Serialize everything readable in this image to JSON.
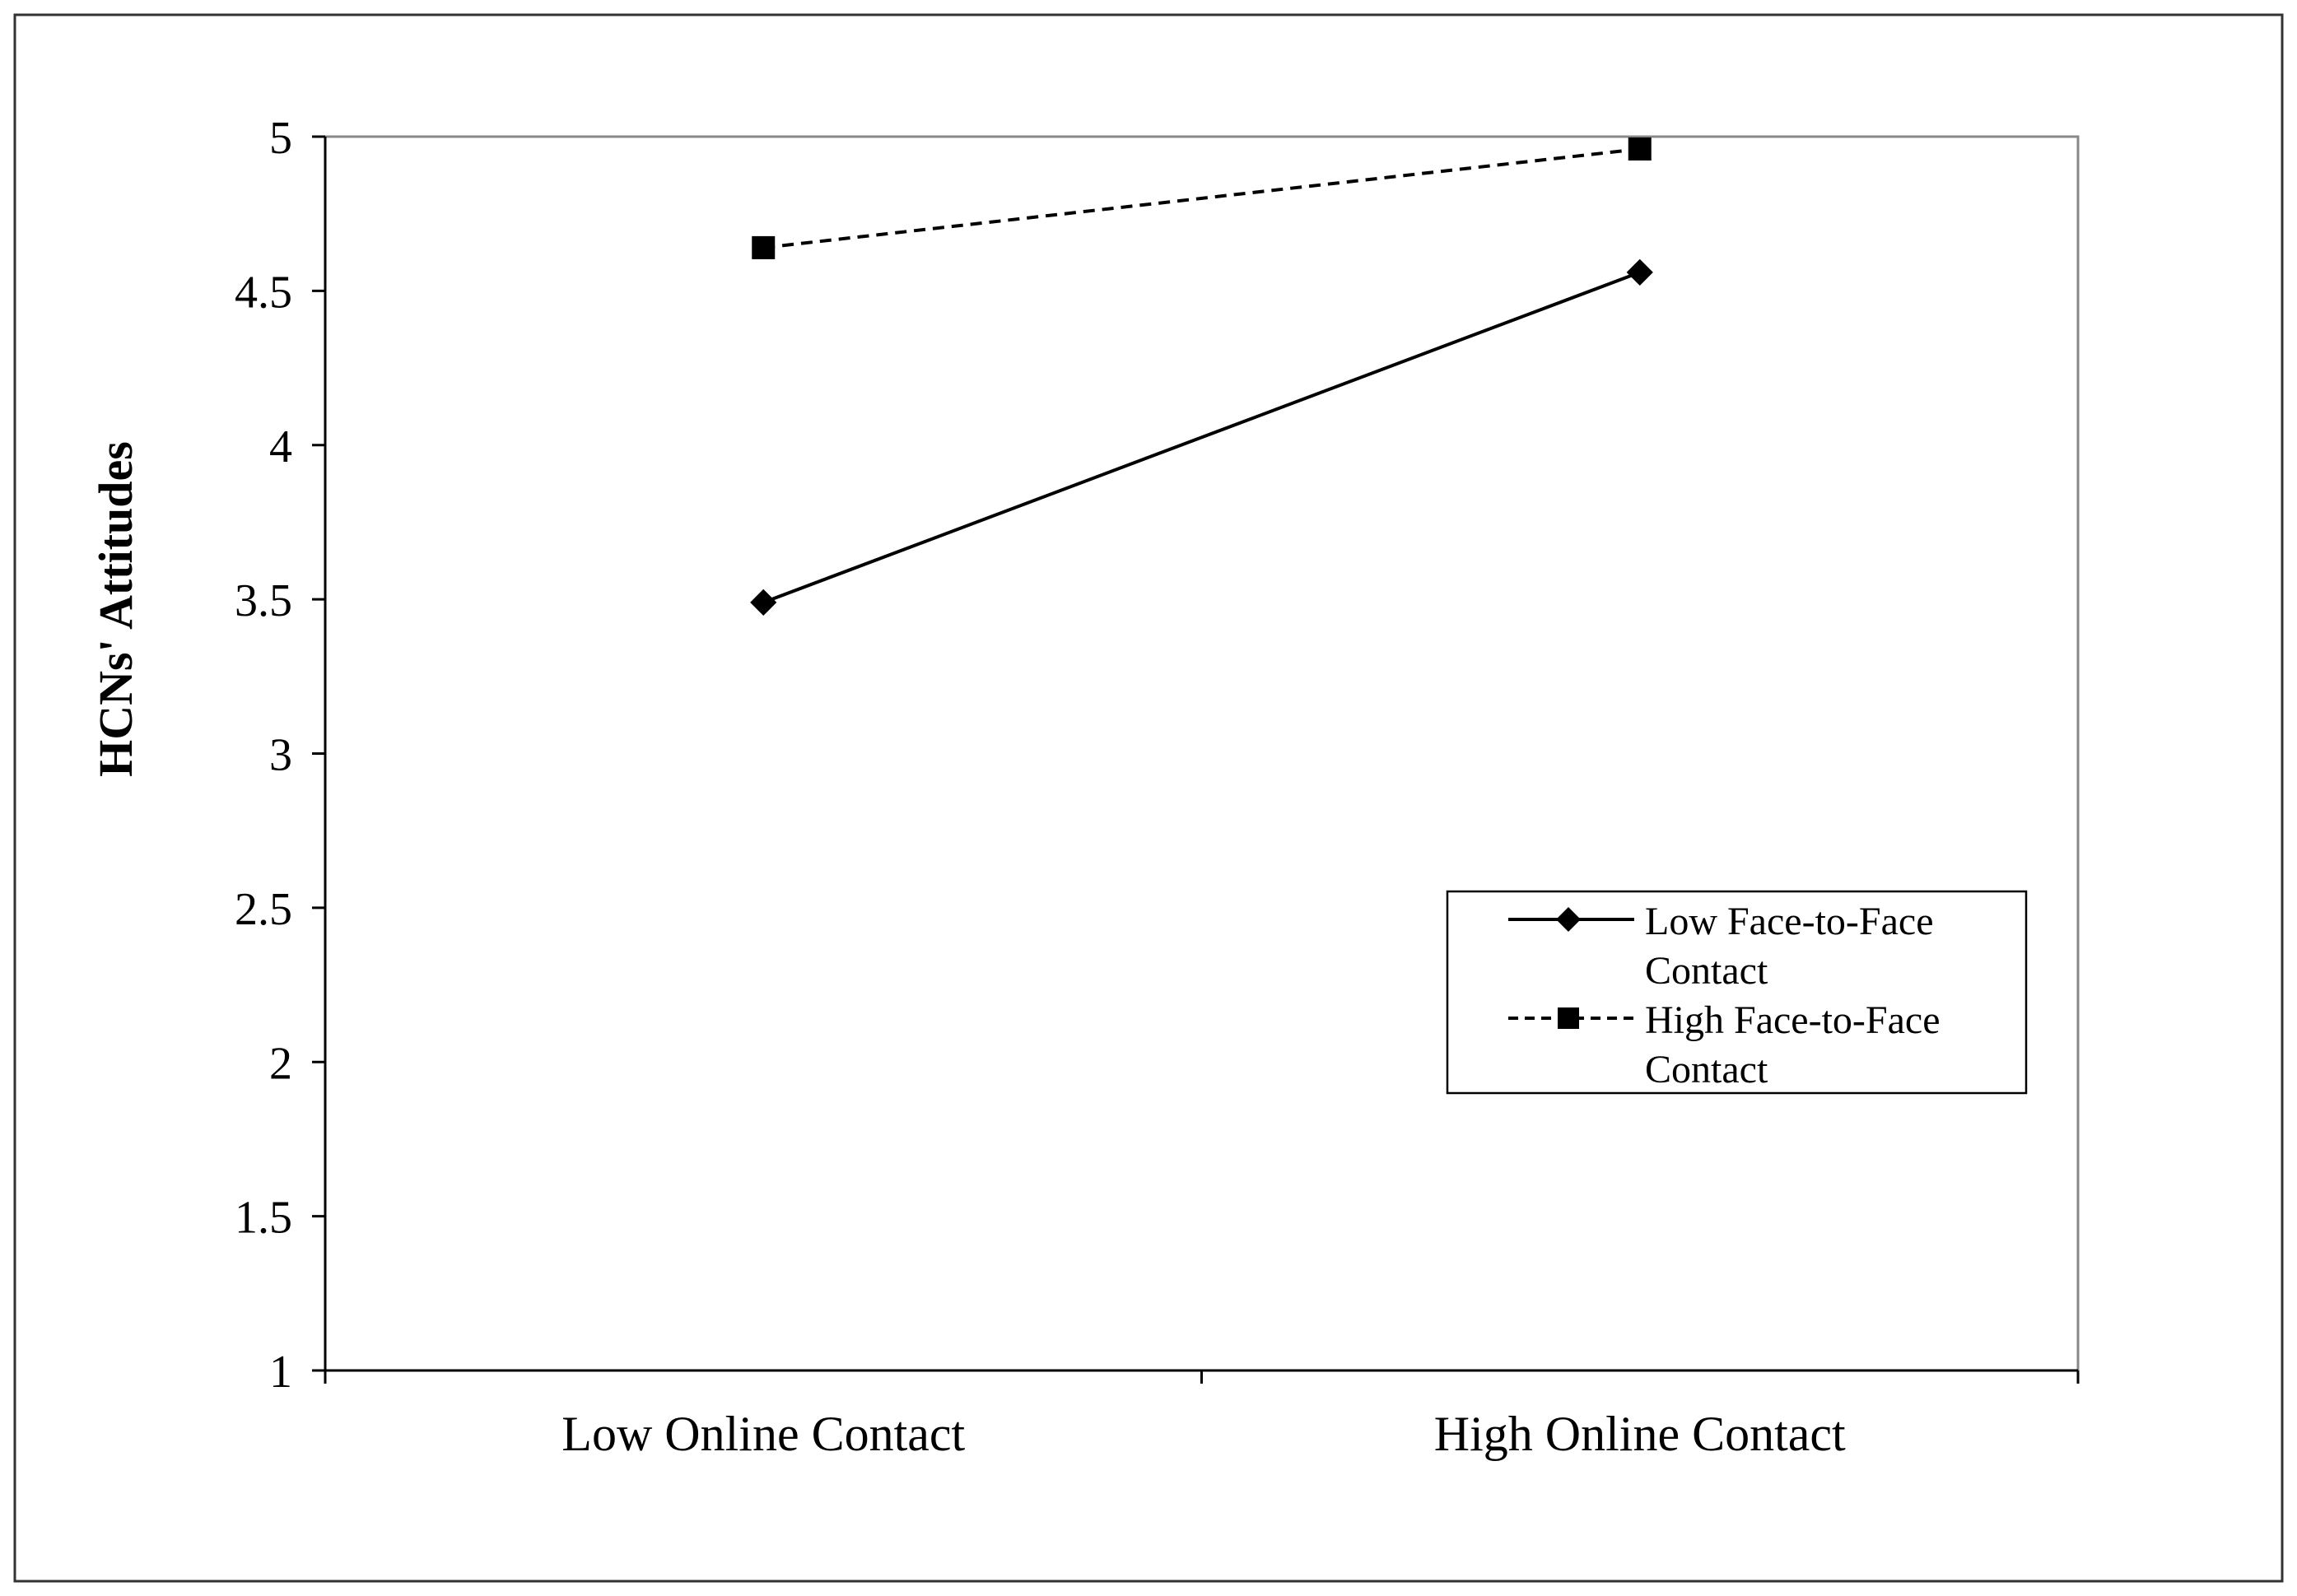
{
  "chart_data": {
    "type": "line",
    "title": "",
    "ylabel": "HCNs' Attitudes",
    "xlabel": "",
    "categories": [
      "Low Online Contact",
      "High Online Contact"
    ],
    "ylim": [
      1,
      5
    ],
    "yticks": [
      1,
      1.5,
      2,
      2.5,
      3,
      3.5,
      4,
      4.5,
      5
    ],
    "ytick_labels": [
      "1",
      "1.5",
      "2",
      "2.5",
      "3",
      "3.5",
      "4",
      "4.5",
      "5"
    ],
    "grid": false,
    "legend_position": "right-center",
    "series": [
      {
        "name_lines": [
          "Low Face-to-Face",
          "Contact"
        ],
        "values": [
          3.49,
          4.56
        ],
        "line_style": "solid",
        "marker": "diamond",
        "color": "#000000"
      },
      {
        "name_lines": [
          "High Face-to-Face",
          "Contact"
        ],
        "values": [
          4.64,
          4.96
        ],
        "line_style": "dashed",
        "marker": "square",
        "color": "#000000"
      }
    ]
  }
}
